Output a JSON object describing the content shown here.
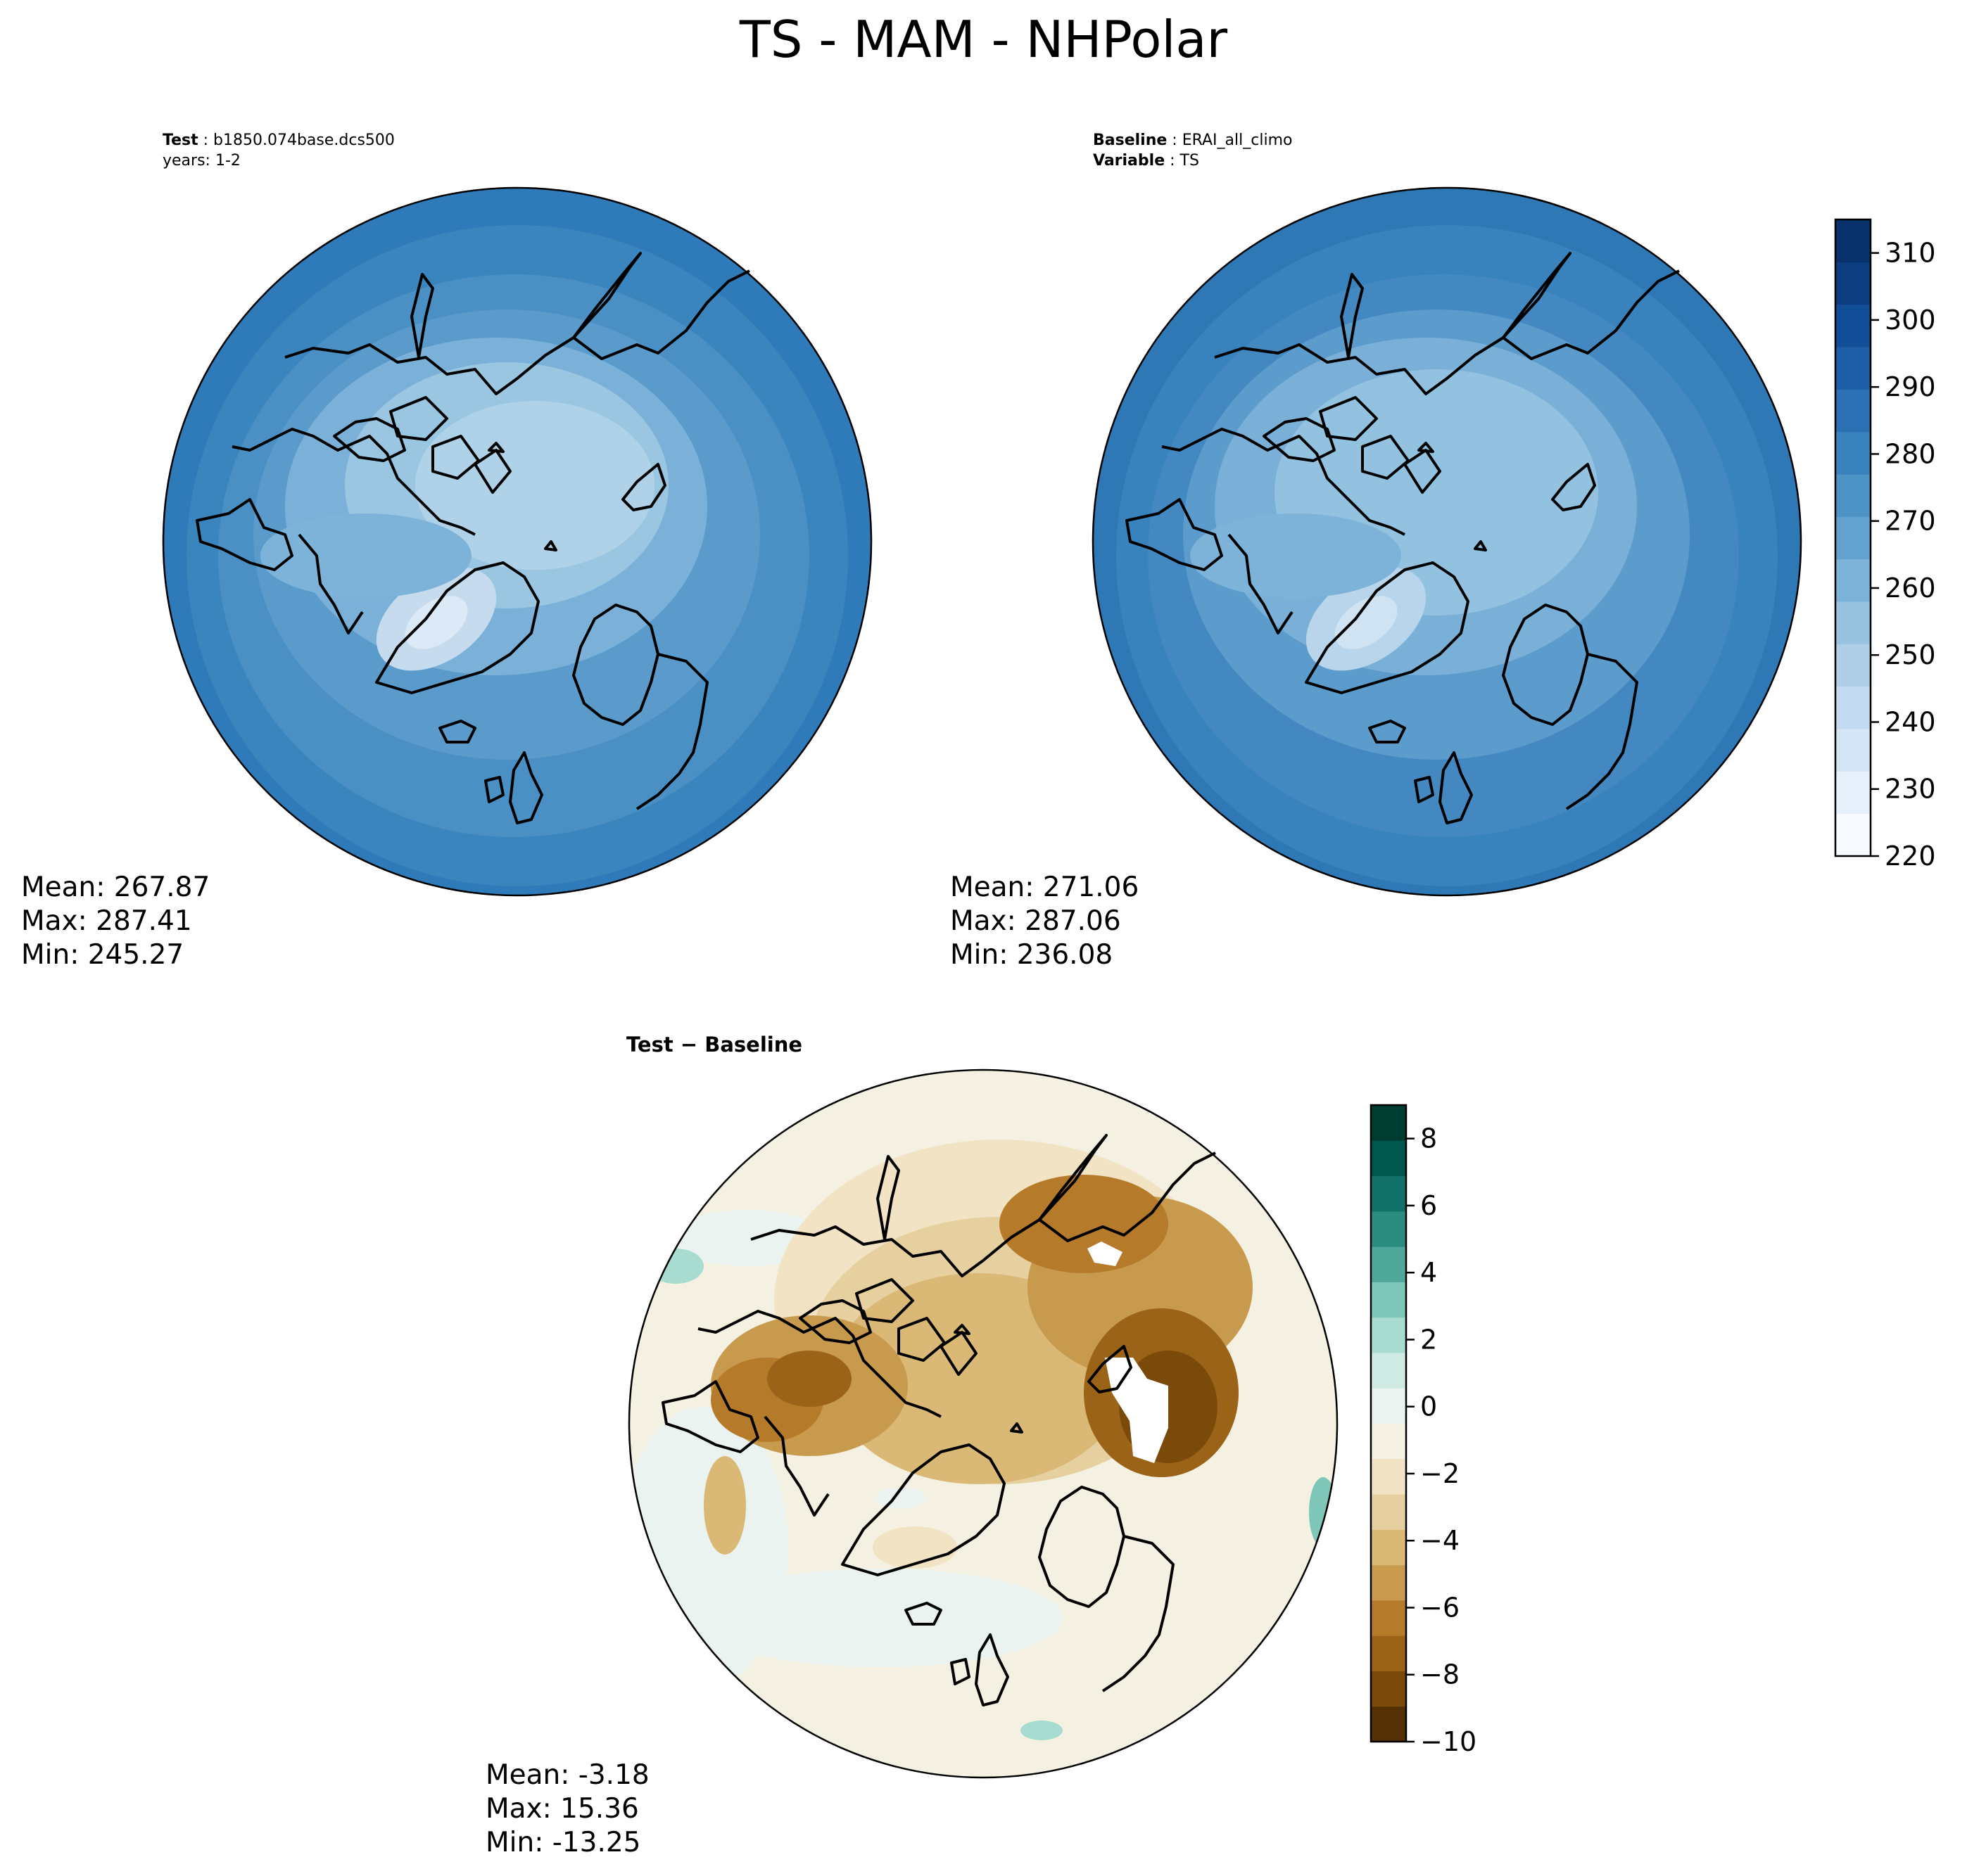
{
  "figure": {
    "title": "TS - MAM - NHPolar"
  },
  "panels": {
    "test": {
      "header_label": "Test",
      "header_value": "b1850.074base.dcs500",
      "header_line2": "years: 1-2",
      "stats": {
        "mean": "Mean: 267.87",
        "max": "Max: 287.41",
        "min": "Min: 245.27"
      }
    },
    "baseline": {
      "header_label": "Baseline",
      "header_value": "ERAI_all_climo",
      "header_label2": "Variable",
      "header_value2": "TS",
      "stats": {
        "mean": "Mean: 271.06",
        "max": "Max: 287.06",
        "min": "Min: 236.08"
      }
    },
    "difference": {
      "title": "Test − Baseline",
      "stats": {
        "mean": "Mean: -3.18",
        "max": "Max: 15.36",
        "min": "Min: -13.25"
      }
    }
  },
  "colorbars": {
    "field": {
      "min": 220,
      "max": 315,
      "ticks": [
        "220",
        "230",
        "240",
        "250",
        "260",
        "270",
        "280",
        "290",
        "300",
        "310"
      ],
      "tick_values": [
        220,
        230,
        240,
        250,
        260,
        270,
        280,
        290,
        300,
        310
      ],
      "colors": [
        "#f7fbff",
        "#e6f0fa",
        "#d4e5f6",
        "#c3daf1",
        "#aecfe6",
        "#97c2e0",
        "#7db2d9",
        "#63a2cf",
        "#4e93c6",
        "#3a82bd",
        "#2a70b2",
        "#1d5ea6",
        "#124d97",
        "#0b3d80",
        "#08306b"
      ]
    },
    "diff": {
      "min": -10,
      "max": 9,
      "ticks": [
        "−10",
        "−8",
        "−6",
        "−4",
        "−2",
        "0",
        "2",
        "4",
        "6",
        "8"
      ],
      "tick_values": [
        -10,
        -8,
        -6,
        -4,
        -2,
        0,
        2,
        4,
        6,
        8
      ],
      "colors": [
        "#543005",
        "#7a4a0b",
        "#9a6317",
        "#b57b2b",
        "#c79a4e",
        "#d9b975",
        "#e6d09f",
        "#f1e3c4",
        "#f5f1e2",
        "#eaf3f0",
        "#cfebe4",
        "#a8dcd1",
        "#7ec6b7",
        "#4fa89a",
        "#2b8c80",
        "#117068",
        "#00574d",
        "#003c30"
      ]
    }
  },
  "colors": {
    "ocean_test": "#4a90c5",
    "ocean_baseline": "#4388c1",
    "coast": "#000000",
    "missing": "#ffffff"
  }
}
